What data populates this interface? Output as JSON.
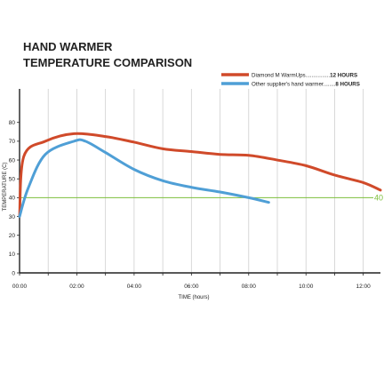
{
  "chart_data": {
    "type": "line",
    "title_lines": [
      "HAND WARMER",
      "TEMPERATURE COMPARISON"
    ],
    "xlabel": "TIME (hours)",
    "ylabel": "TEMPERATURE (C)",
    "xlim": [
      0,
      12.6
    ],
    "ylim": [
      0,
      90
    ],
    "x_ticks": [
      {
        "value": 0,
        "label": "00:00"
      },
      {
        "value": 2,
        "label": "02:00"
      },
      {
        "value": 4,
        "label": "04:00"
      },
      {
        "value": 6,
        "label": "06:00"
      },
      {
        "value": 8,
        "label": "08:00"
      },
      {
        "value": 10,
        "label": "10:00"
      },
      {
        "value": 12,
        "label": "12:00"
      }
    ],
    "y_ticks": [
      0,
      10,
      20,
      30,
      40,
      50,
      60,
      70,
      80
    ],
    "grid": "vertical",
    "legend_position": "top-right",
    "reference_line": {
      "value": 40,
      "label": "40",
      "color": "#7dbf3b"
    },
    "series": [
      {
        "name": "Diamond M WarmUps",
        "legend_suffix": "12 HOURS",
        "color": "#d04a2a",
        "points": [
          [
            0,
            30
          ],
          [
            0.15,
            62
          ],
          [
            0.9,
            70
          ],
          [
            1.9,
            74
          ],
          [
            3,
            72.5
          ],
          [
            4,
            69.5
          ],
          [
            5,
            66
          ],
          [
            6,
            64.5
          ],
          [
            7,
            63
          ],
          [
            8,
            62.5
          ],
          [
            9,
            60
          ],
          [
            10,
            57
          ],
          [
            11,
            52
          ],
          [
            12,
            48
          ],
          [
            12.6,
            44
          ]
        ]
      },
      {
        "name": "Other supplier's hand warmer",
        "legend_suffix": "8 HOURS",
        "color": "#4f9fd6",
        "points": [
          [
            0,
            30
          ],
          [
            0.3,
            45
          ],
          [
            0.9,
            63
          ],
          [
            1.9,
            70
          ],
          [
            2.3,
            70
          ],
          [
            3,
            64
          ],
          [
            4,
            55
          ],
          [
            5,
            49
          ],
          [
            6,
            45.5
          ],
          [
            7,
            43
          ],
          [
            8,
            40
          ],
          [
            8.7,
            37.5
          ]
        ]
      }
    ]
  }
}
